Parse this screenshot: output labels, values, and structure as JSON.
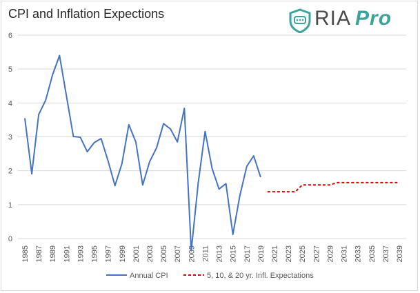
{
  "title": "CPI and Inflation Expections",
  "logo": {
    "brand": "RIA",
    "suffix": "Pro",
    "icon": "shield-chat-icon",
    "brand_color": "#4b4b4b",
    "accent_color": "#3aa39a"
  },
  "chart_data": {
    "type": "line",
    "title": "CPI and Inflation Expections",
    "xlabel": "",
    "ylabel": "",
    "ylim": [
      0,
      6
    ],
    "yticks": [
      "0",
      "1",
      "2",
      "3",
      "4",
      "5",
      "6"
    ],
    "xlim": [
      1985,
      2039
    ],
    "xticks": [
      "1985",
      "1987",
      "1989",
      "1991",
      "1993",
      "1995",
      "1997",
      "1999",
      "2001",
      "2003",
      "2005",
      "2007",
      "2009",
      "2011",
      "2013",
      "2015",
      "2017",
      "2019",
      "2021",
      "2023",
      "2025",
      "2027",
      "2029",
      "2031",
      "2033",
      "2035",
      "2037",
      "2039"
    ],
    "grid": "horizontal",
    "legend_position": "bottom",
    "series": [
      {
        "name": "Annual CPI",
        "color": "#4472c4",
        "style": "solid",
        "x": [
          1985,
          1986,
          1987,
          1988,
          1989,
          1990,
          1991,
          1992,
          1993,
          1994,
          1995,
          1996,
          1997,
          1998,
          1999,
          2000,
          2001,
          2002,
          2003,
          2004,
          2005,
          2006,
          2007,
          2008,
          2009,
          2010,
          2011,
          2012,
          2013,
          2014,
          2015,
          2016,
          2017,
          2018,
          2019
        ],
        "values": [
          3.55,
          1.91,
          3.66,
          4.08,
          4.83,
          5.4,
          4.21,
          3.01,
          2.99,
          2.56,
          2.83,
          2.95,
          2.29,
          1.56,
          2.21,
          3.36,
          2.85,
          1.58,
          2.27,
          2.68,
          3.39,
          3.23,
          2.85,
          3.84,
          -0.36,
          1.64,
          3.16,
          2.07,
          1.46,
          1.62,
          0.12,
          1.26,
          2.13,
          2.44,
          1.81
        ]
      },
      {
        "name": "5, 10, & 20 yr. Infl. Expectations",
        "color": "#e00000",
        "style": "dashed",
        "x": [
          2020,
          2024,
          2025,
          2029,
          2030,
          2039
        ],
        "values": [
          1.38,
          1.38,
          1.58,
          1.58,
          1.65,
          1.65
        ]
      }
    ]
  }
}
